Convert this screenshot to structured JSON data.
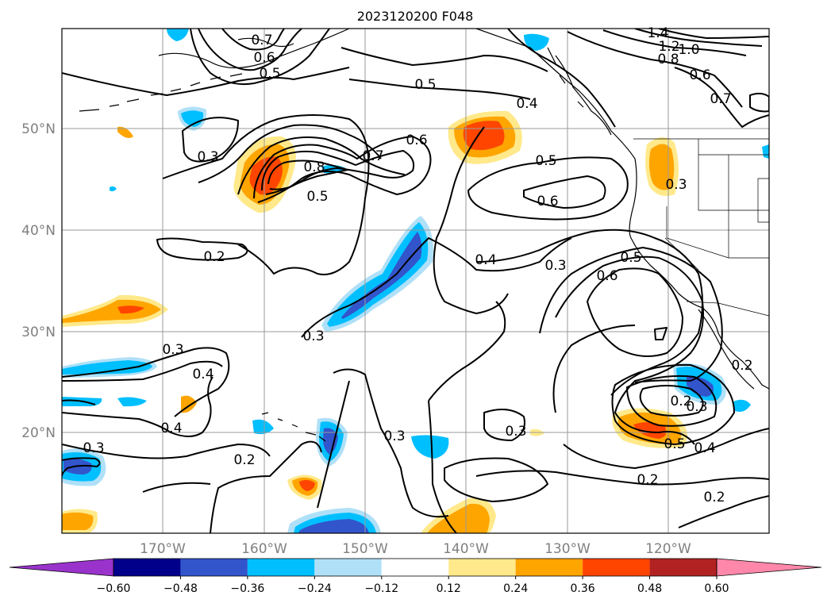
{
  "title": "2023120200 F048",
  "lat_labels": [
    "50°N",
    "40°N",
    "30°N",
    "20°N"
  ],
  "lon_labels": [
    "170°W",
    "160°W",
    "150°W",
    "140°W",
    "130°W",
    "120°W"
  ],
  "colorbar": {
    "ticks": [
      "−0.60",
      "−0.48",
      "−0.36",
      "−0.24",
      "−0.12",
      "0.12",
      "0.24",
      "0.36",
      "0.48",
      "0.60"
    ],
    "colors": [
      "#9933cc",
      "#00008b",
      "#3355cc",
      "#00bfff",
      "#afe0f8",
      "#ffffff",
      "#ffe98a",
      "#ffa500",
      "#ff4500",
      "#b22222",
      "#ff88aa"
    ]
  },
  "fill_colors": {
    "neg_light": "#afe0f8",
    "neg_mid": "#00bfff",
    "neg_dark": "#3355cc",
    "pos_light": "#ffe98a",
    "pos_mid": "#ffa500",
    "pos_dark": "#ff4500"
  },
  "contour_labels": [
    "0.7",
    "0.6",
    "0.5",
    "1.4",
    "1.2",
    "1.0",
    "0.8",
    "0.6",
    "0.7",
    "0.5",
    "0.4",
    "0.3",
    "0.8",
    "0.7",
    "0.6",
    "0.5",
    "0.5",
    "0.6",
    "0.3",
    "0.2",
    "0.4",
    "0.3",
    "0.5",
    "0.6",
    "0.3",
    "0.3",
    "0.4",
    "0.4",
    "0.2",
    "0.3",
    "0.3",
    "0.2",
    "0.3",
    "0.5",
    "0.4",
    "0.2",
    "0.2",
    "0.3",
    "0.2"
  ]
}
